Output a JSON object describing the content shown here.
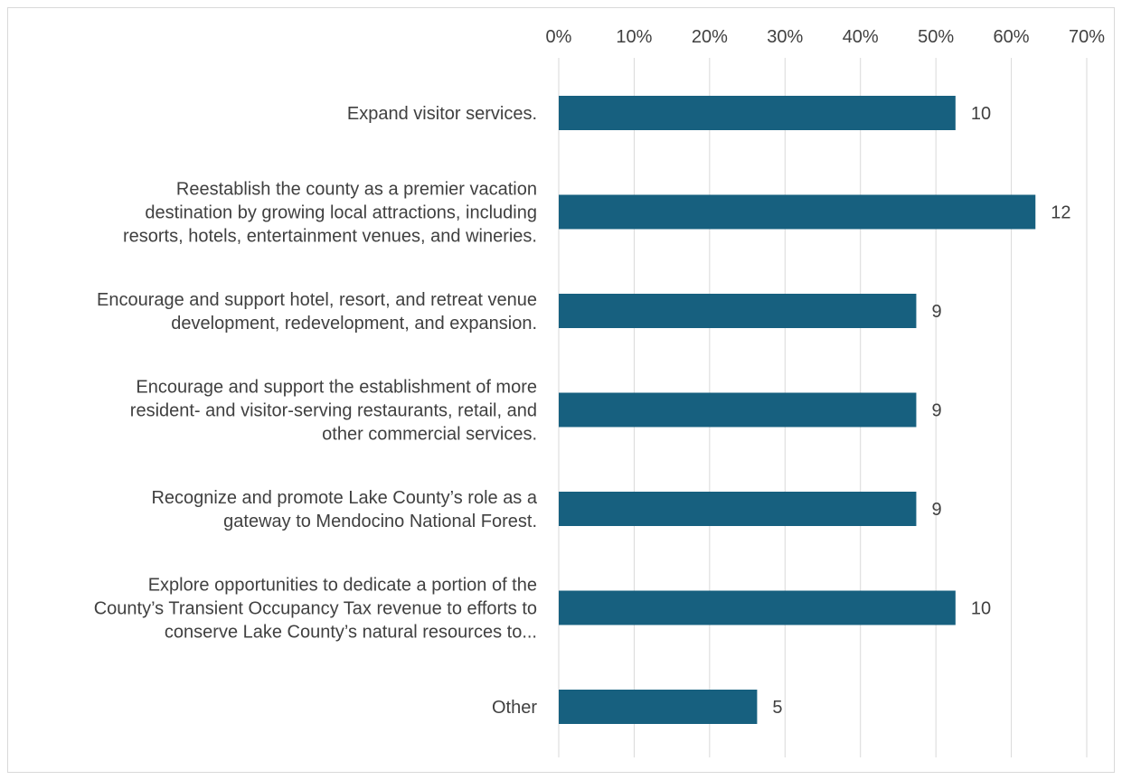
{
  "chart_data": {
    "type": "bar",
    "orientation": "horizontal",
    "categories": [
      "Expand visitor services.",
      "Reestablish the county as a premier vacation destination by growing local attractions, including resorts, hotels, entertainment venues, and wineries.",
      "Encourage and support hotel, resort, and retreat venue development, redevelopment, and expansion.",
      "Encourage and support the establishment of more resident- and visitor-serving restaurants, retail, and other commercial services.",
      "Recognize and promote Lake County’s role as a gateway to Mendocino National Forest.",
      "Explore opportunities to dedicate a portion of the County’s Transient Occupancy Tax revenue to efforts to conserve Lake County’s natural resources to...",
      "Other"
    ],
    "category_lines": [
      [
        "Expand visitor services."
      ],
      [
        "Reestablish the county as a premier vacation",
        "destination by growing local attractions, including",
        "resorts, hotels, entertainment venues, and wineries."
      ],
      [
        "Encourage and support hotel, resort, and retreat venue",
        "development, redevelopment, and expansion."
      ],
      [
        "Encourage and support the establishment of more",
        "resident- and visitor-serving restaurants, retail, and",
        "other commercial services."
      ],
      [
        "Recognize and promote Lake County’s role as a",
        "gateway to Mendocino National Forest."
      ],
      [
        "Explore opportunities to dedicate a portion of the",
        "County’s Transient Occupancy Tax revenue to efforts to",
        "conserve Lake County’s natural resources to..."
      ],
      [
        "Other"
      ]
    ],
    "values": [
      0.526,
      0.632,
      0.474,
      0.474,
      0.474,
      0.526,
      0.263
    ],
    "data_labels": [
      "10",
      "12",
      "9",
      "9",
      "9",
      "10",
      "5"
    ],
    "x_ticks": [
      "0%",
      "10%",
      "20%",
      "30%",
      "40%",
      "50%",
      "60%",
      "70%"
    ],
    "xlim": [
      0,
      0.7
    ],
    "x_axis_position": "top",
    "grid": true,
    "legend": "none",
    "title": "",
    "xlabel": "",
    "ylabel": "",
    "colors": {
      "bar": "#17607f",
      "grid": "#d9d9d9",
      "text": "#404040",
      "border": "#d9d9d9"
    }
  }
}
